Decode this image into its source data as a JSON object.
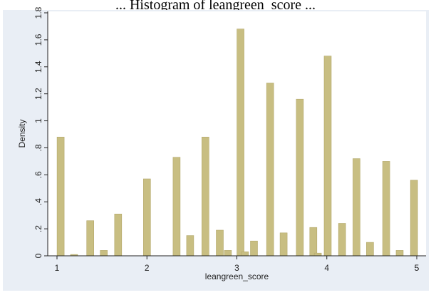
{
  "chart_data": {
    "type": "bar",
    "title": "... Histogram of leangreen_score ...",
    "xlabel": "leangreen_score",
    "ylabel": "Density",
    "xlim": [
      1,
      5
    ],
    "ylim": [
      0,
      1.8
    ],
    "x_ticks": [
      "1",
      "2",
      "3",
      "4",
      "5"
    ],
    "y_ticks": [
      "0",
      ".2",
      ".4",
      ".6",
      ".8",
      "1",
      "1.2",
      "1.4",
      "1.6",
      "1.8"
    ],
    "bar_color": "#c8be82",
    "bar_edge_color": "#b3a86b",
    "plot_background": "#ffffff",
    "outer_background": "#e9eef5",
    "bars": [
      {
        "x": 1.04,
        "y": 0.88
      },
      {
        "x": 1.19,
        "y": 0.01
      },
      {
        "x": 1.37,
        "y": 0.26
      },
      {
        "x": 1.52,
        "y": 0.04
      },
      {
        "x": 1.68,
        "y": 0.31
      },
      {
        "x": 2.0,
        "y": 0.57
      },
      {
        "x": 2.33,
        "y": 0.73
      },
      {
        "x": 2.48,
        "y": 0.15
      },
      {
        "x": 2.65,
        "y": 0.88
      },
      {
        "x": 2.81,
        "y": 0.19
      },
      {
        "x": 2.9,
        "y": 0.04
      },
      {
        "x": 3.04,
        "y": 1.68
      },
      {
        "x": 3.09,
        "y": 0.03
      },
      {
        "x": 3.19,
        "y": 0.11
      },
      {
        "x": 3.37,
        "y": 1.28
      },
      {
        "x": 3.52,
        "y": 0.17
      },
      {
        "x": 3.7,
        "y": 1.16
      },
      {
        "x": 3.85,
        "y": 0.21
      },
      {
        "x": 3.9,
        "y": 0.02
      },
      {
        "x": 4.01,
        "y": 1.48
      },
      {
        "x": 4.17,
        "y": 0.24
      },
      {
        "x": 4.33,
        "y": 0.72
      },
      {
        "x": 4.48,
        "y": 0.1
      },
      {
        "x": 4.66,
        "y": 0.7
      },
      {
        "x": 4.81,
        "y": 0.04
      },
      {
        "x": 4.97,
        "y": 0.56
      }
    ]
  }
}
